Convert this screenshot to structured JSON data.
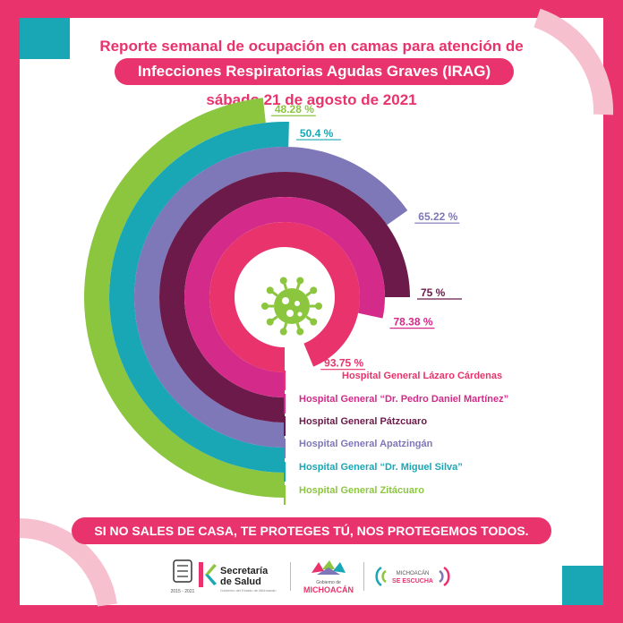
{
  "header": {
    "line1": "Reporte semanal de ocupación en camas para atención de",
    "line2": "Infecciones Respiratorias Agudas Graves (IRAG)",
    "line3": "sábado 21 de agosto de 2021"
  },
  "chart_data": {
    "type": "radial-bar",
    "unit": "%",
    "series": [
      {
        "name": "Hospital General Zitácuaro",
        "value": 48.28,
        "label": "48.28 %",
        "color": "#8cc63f"
      },
      {
        "name": "Hospital General “Dr. Miguel Silva”",
        "value": 50.4,
        "label": "50.4 %",
        "color": "#1aa7b5"
      },
      {
        "name": "Hospital General Apatzingán",
        "value": 65.22,
        "label": "65.22 %",
        "color": "#7e77b8"
      },
      {
        "name": "Hospital General Pátzcuaro",
        "value": 75,
        "label": "75 %",
        "color": "#6b1a4a"
      },
      {
        "name": "Hospital General “Dr. Pedro Daniel Martínez”",
        "value": 78.38,
        "label": "78.38 %",
        "color": "#d42a8a"
      },
      {
        "name": "Hospital General Lázaro Cárdenas",
        "value": 93.75,
        "label": "93.75 %",
        "color": "#e8336d"
      }
    ],
    "legend_order": [
      "Hospital General Lázaro Cárdenas",
      "Hospital General “Dr. Pedro Daniel Martínez”",
      "Hospital General Pátzcuaro",
      "Hospital General Apatzingán",
      "Hospital General “Dr. Miguel Silva”",
      "Hospital General Zitácuaro"
    ]
  },
  "slogan": "SI NO SALES DE CASA, TE PROTEGES TÚ, NOS PROTEGEMOS TODOS.",
  "footer": {
    "secretaria_line1": "Secretaría",
    "secretaria_line2": "de Salud",
    "secretaria_sub": "Gobierno del Estado de Michoacán",
    "gobierno_small": "Gobierno de",
    "gobierno_main": "MICHOACÁN",
    "escucha_line1": "MICHOACÁN",
    "escucha_line2": "SE ESCUCHA",
    "years": "2015 - 2021"
  },
  "colors": {
    "brand_pink": "#e8336d",
    "green": "#8cc63f",
    "teal": "#1aa7b5",
    "lavender": "#7e77b8",
    "plum": "#6b1a4a",
    "magenta": "#d42a8a"
  },
  "icons": [
    "virus-icon",
    "coat-of-arms-icon",
    "secretaria-logo-icon",
    "michoacan-logo-icon",
    "sound-waves-icon"
  ]
}
